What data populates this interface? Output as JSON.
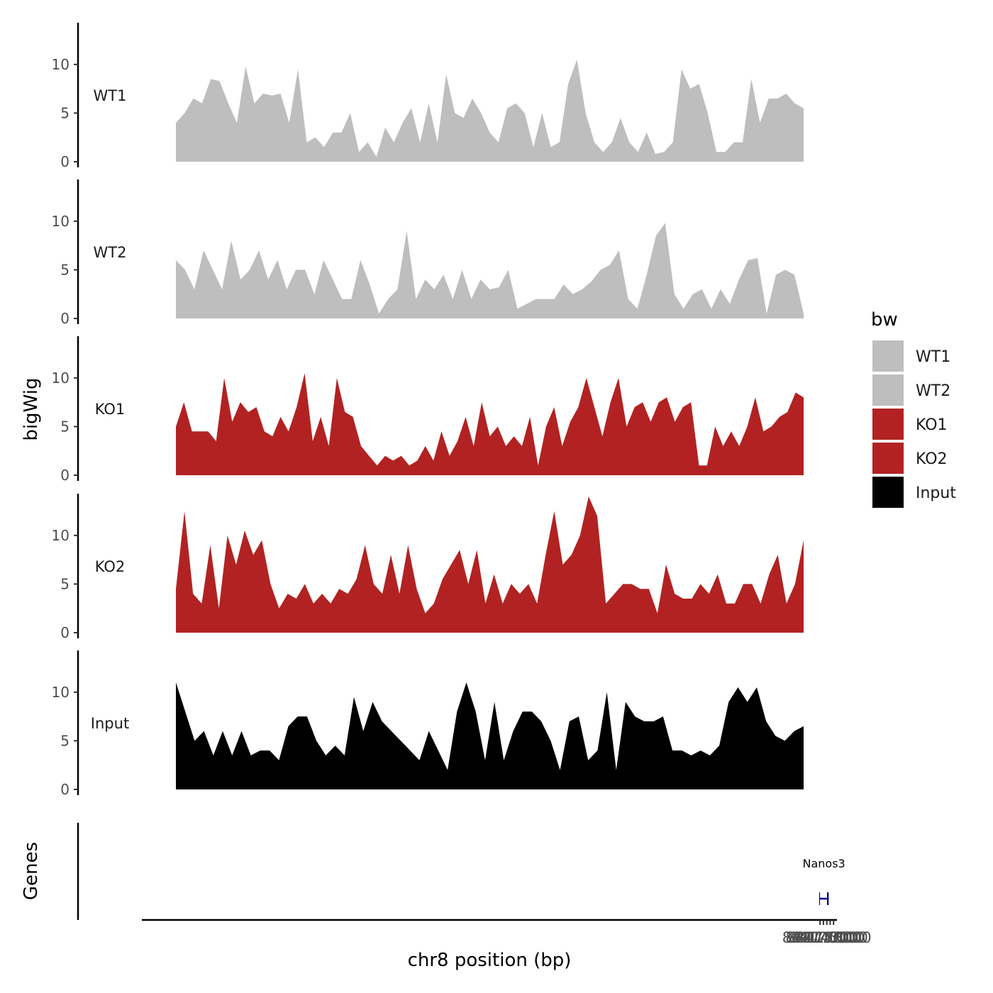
{
  "chart_data": {
    "type": "area",
    "title": "",
    "ylabel": "bigWig",
    "xlabel": "chr8 position (bp)",
    "genes_label": "Genes",
    "ylim": [
      0,
      14
    ],
    "yticks": [
      0,
      5,
      10
    ],
    "xlim": [
      83973500,
      84179000
    ],
    "x_range": [
      84173750,
      84178500
    ],
    "xticks": [
      84174000,
      84175000,
      84176000,
      84177000,
      84178000
    ],
    "xtick_labels": [
      "84174000",
      "84175000",
      "84176000",
      "84177000",
      "84178000"
    ],
    "legend": {
      "title": "bw",
      "placement": "right"
    },
    "series": [
      {
        "name": "WT1",
        "color": "#bebebe",
        "values": [
          4,
          5,
          6.5,
          6,
          8.5,
          8.3,
          6,
          4,
          9.8,
          6,
          7,
          6.8,
          7,
          4,
          9.5,
          2,
          2.5,
          1.5,
          3,
          3,
          5,
          1,
          2,
          0.5,
          3.5,
          2,
          4,
          5.5,
          2,
          6,
          2,
          9,
          5,
          4.5,
          6.5,
          5,
          3,
          2,
          5.5,
          6,
          5,
          1.5,
          5,
          1.5,
          2,
          8,
          10.5,
          5,
          2,
          1,
          2,
          4.5,
          2,
          1,
          3,
          0.8,
          1,
          2,
          9.5,
          7.5,
          8,
          5,
          1,
          1,
          2,
          2,
          8.5,
          4,
          6.5,
          6.5,
          7,
          6,
          5.5
        ]
      },
      {
        "name": "WT2",
        "color": "#bebebe",
        "values": [
          6,
          5,
          3,
          7,
          5,
          3,
          8,
          4,
          5,
          7,
          4,
          6,
          3,
          5,
          5,
          2.5,
          6,
          4,
          2,
          2,
          6,
          3.5,
          0.5,
          2,
          3,
          9,
          2,
          4,
          3,
          4.5,
          2,
          5,
          2,
          4,
          3,
          3.2,
          5,
          1,
          1.5,
          2,
          2,
          2,
          3.5,
          2.5,
          3,
          3.8,
          5,
          5.5,
          7,
          2,
          1,
          4.5,
          8.5,
          9.8,
          2.5,
          1,
          2.5,
          3,
          1,
          3,
          1.5,
          4,
          6,
          6.2,
          0.5,
          4.5,
          5,
          4.5,
          0.5
        ]
      },
      {
        "name": "KO1",
        "color": "#b22222",
        "values": [
          5,
          7.5,
          4.5,
          4.5,
          4.5,
          3.5,
          10,
          5.5,
          7.5,
          6.5,
          7,
          4.5,
          4,
          6,
          4.5,
          7,
          10.5,
          3.5,
          6,
          3,
          10,
          6.5,
          6,
          3,
          2,
          1,
          2,
          1.5,
          2,
          1,
          1.5,
          3,
          1.5,
          4.5,
          2,
          3.5,
          6,
          3,
          7.5,
          4,
          5,
          3,
          4,
          3,
          6,
          1,
          5,
          7,
          3,
          5.5,
          7,
          10,
          7,
          4,
          7.5,
          10,
          5,
          7,
          7.5,
          5.5,
          7.5,
          8,
          5.5,
          7,
          7.5,
          1,
          1,
          5,
          3,
          4.5,
          3,
          5,
          8,
          4.5,
          5,
          6,
          6.5,
          8.5,
          8
        ]
      },
      {
        "name": "KO2",
        "color": "#b22222",
        "values": [
          4.5,
          12.5,
          4,
          3,
          9,
          2.5,
          10,
          7,
          10.5,
          8,
          9.5,
          5,
          2.5,
          4,
          3.5,
          5,
          3,
          4,
          3,
          4.5,
          4,
          5.5,
          9,
          5,
          4,
          8,
          4,
          9,
          4.5,
          2,
          3,
          5.5,
          7,
          8.5,
          5,
          8.5,
          3,
          6,
          3,
          5,
          4,
          5,
          3,
          8,
          12.5,
          7,
          8,
          10,
          14,
          12,
          3,
          4,
          5,
          5,
          4.5,
          4.5,
          2,
          7,
          4,
          3.5,
          3.5,
          5,
          4,
          6,
          3,
          3,
          5,
          5,
          3,
          6,
          8,
          3,
          5,
          9.5
        ]
      },
      {
        "name": "Input",
        "color": "#000000",
        "values": [
          11,
          8,
          5,
          6,
          3.5,
          6,
          3.5,
          6,
          3.5,
          4,
          4,
          3,
          6.5,
          7.5,
          7.5,
          5,
          3.5,
          4.5,
          3.5,
          9.5,
          6,
          9,
          7,
          6,
          5,
          4,
          3,
          6,
          4,
          2,
          8,
          11,
          8,
          3,
          9,
          3,
          6,
          8,
          8,
          7,
          5,
          2,
          7,
          7.5,
          3,
          4,
          10,
          2,
          9,
          7.5,
          7,
          7,
          7.5,
          4,
          4,
          3.5,
          4,
          3.5,
          4.5,
          9,
          10.5,
          9,
          10.5,
          7,
          5.5,
          5,
          6,
          6.5
        ]
      }
    ],
    "gene": {
      "name": "Nanos3",
      "start": 84173750,
      "end": 84176550,
      "exons": [
        [
          84173750,
          84173990
        ],
        [
          84176060,
          84176550
        ]
      ],
      "strand": "-"
    }
  }
}
